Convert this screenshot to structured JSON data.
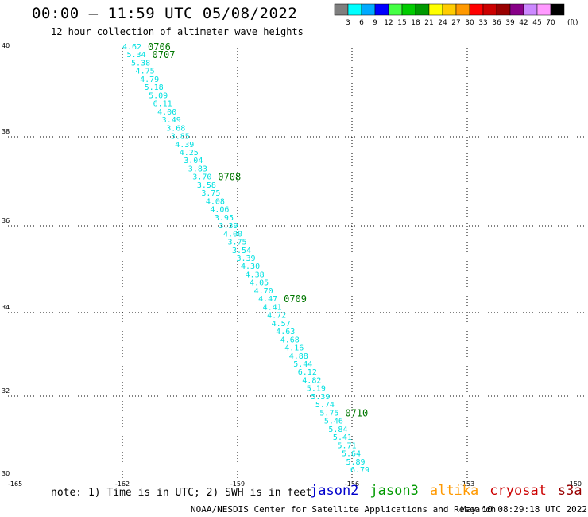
{
  "header": {
    "title": "00:00 – 11:59 UTC 05/08/2022",
    "subtitle": "12 hour collection of altimeter wave heights"
  },
  "color_scale": {
    "colors": [
      "#7f7f7f",
      "#00ffff",
      "#00aaff",
      "#0000ff",
      "#44ff44",
      "#00cc00",
      "#009900",
      "#ffff00",
      "#ffcc00",
      "#ff9900",
      "#ff0000",
      "#cc0000",
      "#990000",
      "#880088",
      "#cc88ff",
      "#ff99ff",
      "#000000"
    ],
    "labels": [
      "3",
      "6",
      "9",
      "12",
      "15",
      "18",
      "21",
      "24",
      "27",
      "30",
      "33",
      "36",
      "39",
      "42",
      "45",
      "70",
      "(ft)"
    ]
  },
  "map": {
    "lat_ticks": [
      "40",
      "38",
      "36",
      "34",
      "32",
      "30"
    ],
    "lon_ticks": [
      "-165",
      "-162",
      "-159",
      "-156",
      "-153",
      "-150"
    ],
    "track_color": "#00e0e0",
    "time_label_color": "#007700",
    "track_values": [
      "4.62",
      "5.34",
      "5.38",
      "4.75",
      "4.79",
      "5.18",
      "5.09",
      "6.11",
      "4.00",
      "3.49",
      "3.68",
      "3.85",
      "4.39",
      "4.25",
      "3.04",
      "3.83",
      "3.70",
      "3.58",
      "3.75",
      "4.08",
      "4.06",
      "3.95",
      "3.39",
      "4.00",
      "3.75",
      "3.54",
      "3.39",
      "4.30",
      "4.38",
      "4.05",
      "4.70",
      "4.47",
      "4.41",
      "4.72",
      "4.57",
      "4.63",
      "4.68",
      "4.16",
      "4.88",
      "5.44",
      "6.12",
      "4.82",
      "5.19",
      "5.39",
      "5.74",
      "5.75",
      "5.46",
      "5.84",
      "5.41",
      "5.71",
      "5.64",
      "5.89",
      "6.79"
    ],
    "time_labels": [
      {
        "text": "0706",
        "after_index": 0
      },
      {
        "text": "0707",
        "after_index": 1
      },
      {
        "text": "0708",
        "after_index": 16
      },
      {
        "text": "0709",
        "after_index": 31
      },
      {
        "text": "0710",
        "after_index": 45
      }
    ]
  },
  "footer": {
    "note": "note:  1) Time is in UTC;  2) SWH is in feet",
    "satellites": [
      {
        "name": "jason2",
        "color": "#0000cc"
      },
      {
        "name": "jason3",
        "color": "#009900"
      },
      {
        "name": "altika",
        "color": "#ff9900"
      },
      {
        "name": "cryosat",
        "color": "#cc0000"
      },
      {
        "name": "s3a",
        "color": "#990000"
      }
    ],
    "credit": "NOAA/NESDIS Center for Satellite Applications and Research",
    "timestamp": "May 10 08:29:18 UTC 2022"
  }
}
